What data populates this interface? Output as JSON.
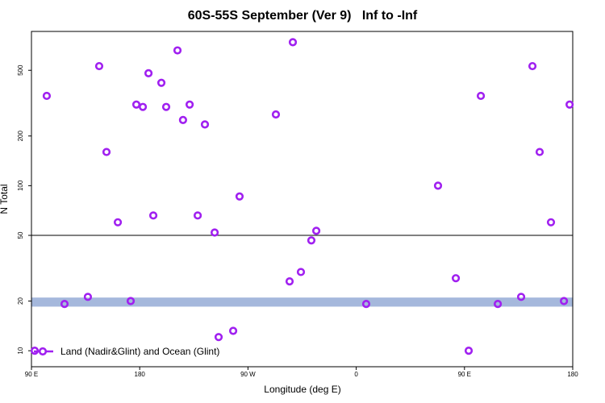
{
  "chart_data": {
    "type": "scatter",
    "title": "60S-55S September (Ver 9)   Inf to -Inf",
    "x_label": "Longitude (deg E)",
    "y_label": "N Total",
    "xlim": [
      90,
      540
    ],
    "ylim": [
      8,
      860
    ],
    "log_y": true,
    "xticks": [
      {
        "value": 90,
        "label": "90 E"
      },
      180,
      {
        "value": 270,
        "label": "90 W"
      },
      {
        "value": 360,
        "label": "0"
      },
      {
        "value": 450,
        "label": "90 E"
      },
      {
        "value": 540,
        "label": "180"
      }
    ],
    "yticks": [
      10,
      20,
      50,
      100,
      200,
      500
    ],
    "hline": 50,
    "band": {
      "low": 18.5,
      "high": 21,
      "color": "#a5b8dc"
    },
    "legend": "bottom-left",
    "series": [
      {
        "name": "Land (Nadir&Glint) and Ocean (Glint)",
        "color": "#a020f0",
        "x": [
          92.7,
          102.7,
          117.5,
          136.9,
          146.3,
          152.4,
          161.8,
          172.5,
          177.2,
          182.6,
          187.3,
          191.3,
          198,
          202,
          211.4,
          216,
          221.5,
          228.2,
          234.2,
          242.3,
          245.6,
          257.7,
          263,
          293.2,
          304.6,
          307.3,
          314,
          322.7,
          326.8,
          368.3,
          428,
          442.8,
          453.5,
          463.6,
          477.7,
          497.1,
          506.5,
          512.5,
          521.9,
          532.7,
          537.4
        ],
        "values": [
          10,
          350,
          19.2,
          21.2,
          530,
          160,
          60,
          20,
          310,
          300,
          480,
          66,
          420,
          300,
          660,
          250,
          310,
          66,
          235,
          52,
          12.1,
          13.2,
          86,
          270,
          26.3,
          740,
          30,
          46.6,
          53.3,
          19.2,
          100,
          27.5,
          10,
          350,
          19.2,
          21.2,
          530,
          160,
          60,
          20,
          310
        ]
      }
    ]
  }
}
